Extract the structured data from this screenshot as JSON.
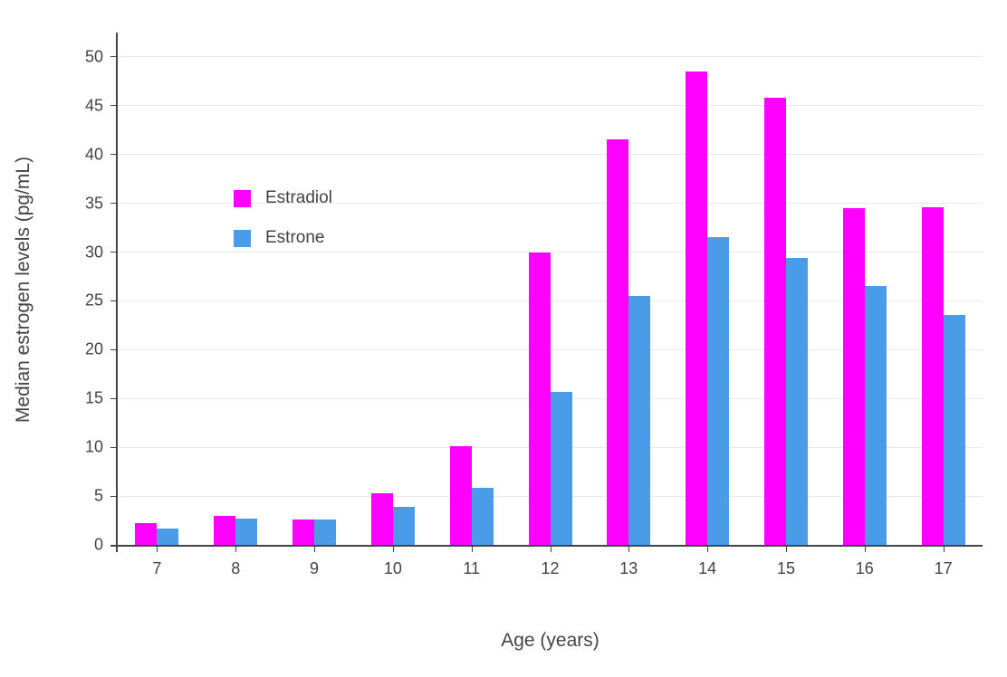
{
  "chart_data": {
    "type": "bar",
    "title": "",
    "xlabel": "Age (years)",
    "ylabel": "Median estrogen levels (pg/mL)",
    "categories": [
      "7",
      "8",
      "9",
      "10",
      "11",
      "12",
      "13",
      "14",
      "15",
      "16",
      "17"
    ],
    "series": [
      {
        "name": "Estradiol",
        "color": "#ff00ff",
        "values": [
          2.2,
          3.0,
          2.6,
          5.3,
          10.1,
          30.0,
          41.6,
          48.5,
          45.8,
          34.5,
          34.6
        ]
      },
      {
        "name": "Estrone",
        "color": "#4a9be8",
        "values": [
          1.7,
          2.7,
          2.6,
          3.9,
          5.8,
          15.7,
          25.5,
          31.5,
          29.4,
          26.5,
          23.6
        ]
      }
    ],
    "ylim": [
      0,
      52.5
    ],
    "yticks": [
      0,
      5,
      10,
      15,
      20,
      25,
      30,
      35,
      40,
      45,
      50
    ],
    "grid": true,
    "legend_position": "inside-top-left",
    "axis_color": "#444444",
    "grid_color": "#e8e8e8",
    "background_color": "#ffffff"
  }
}
